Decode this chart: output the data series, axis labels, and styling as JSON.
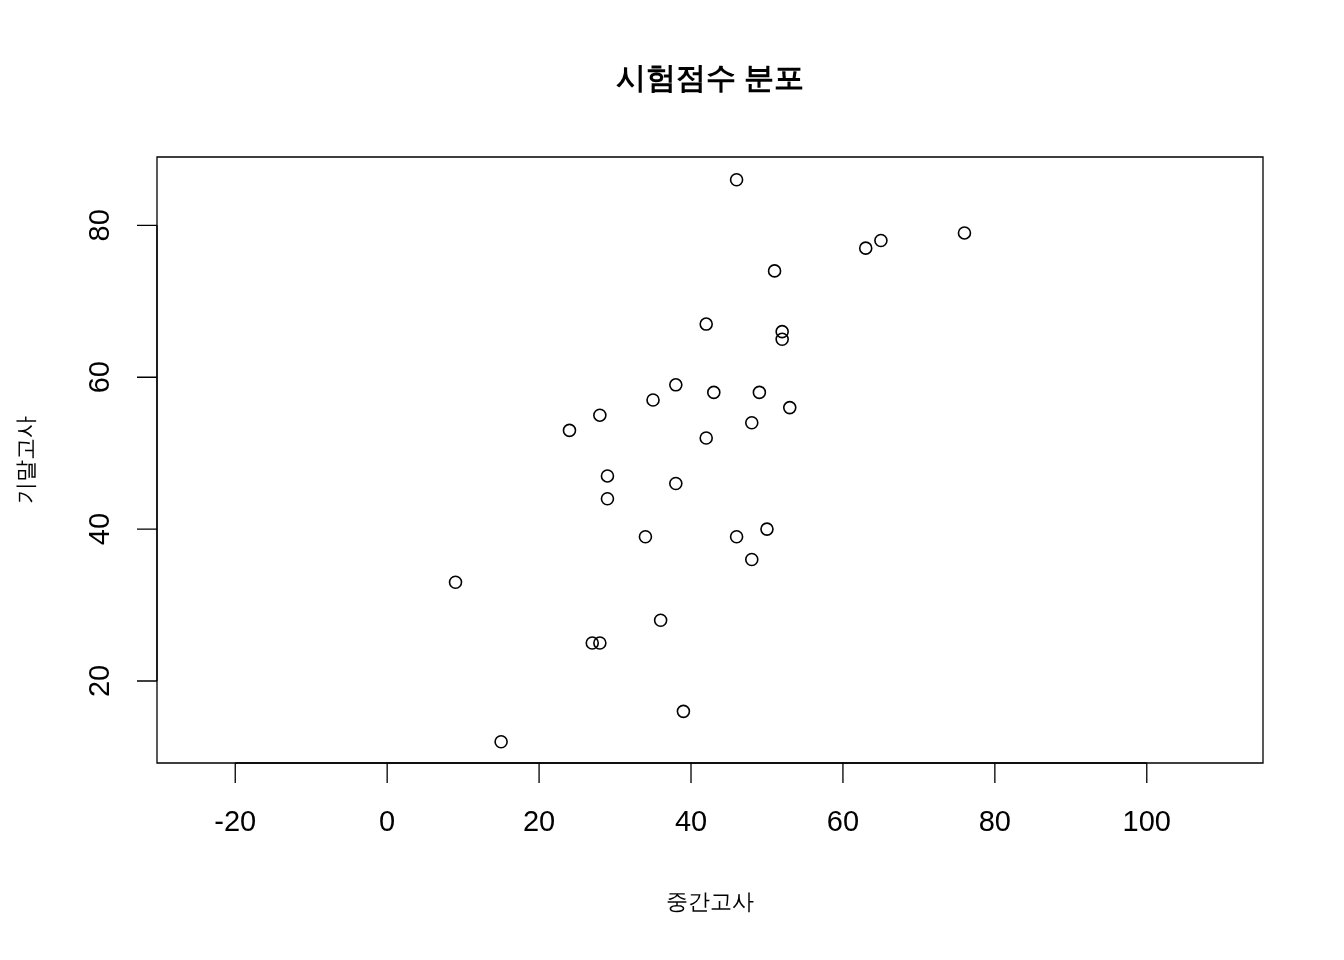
{
  "chart_data": {
    "type": "scatter",
    "title": "시험점수 분포",
    "xlabel": "중간고사",
    "ylabel": "기말고사",
    "x": [
      46,
      63,
      65,
      76,
      51,
      42,
      52,
      52,
      38,
      35,
      43,
      49,
      53,
      28,
      48,
      24,
      42,
      29,
      38,
      29,
      34,
      46,
      50,
      48,
      9,
      36,
      27,
      28,
      39,
      15
    ],
    "series": [
      {
        "color": "#000000",
        "values": [
          86,
          77,
          78,
          79,
          74,
          67,
          66,
          65,
          59,
          57,
          58,
          58,
          56,
          55,
          54,
          53,
          52,
          47,
          46,
          44,
          39,
          39,
          40,
          36,
          33,
          28,
          25,
          25,
          16,
          12
        ]
      }
    ],
    "xlim": [
      -30.3,
      115.3
    ],
    "ylim": [
      9.2,
      89
    ],
    "xticks": [
      -20,
      0,
      20,
      40,
      60,
      80,
      100
    ],
    "yticks": [
      20,
      40,
      60,
      80
    ],
    "marker": "circle",
    "grid": false,
    "legend": false
  }
}
